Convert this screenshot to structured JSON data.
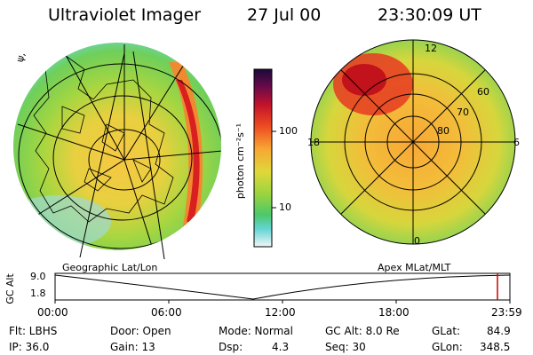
{
  "header": {
    "title": "Ultraviolet Imager",
    "date": "27 Jul 00",
    "time": "23:30:09 UT"
  },
  "colorbar": {
    "label": "photon cm⁻²s⁻¹",
    "ticks": [
      "100",
      "10"
    ]
  },
  "left_panel": {
    "corner_label": "ψ,",
    "caption": "Geographic Lat/Lon"
  },
  "right_panel": {
    "caption": "Apex MLat/MLT",
    "mlt_labels": {
      "top": "12",
      "bottom": "0",
      "left": "18",
      "right": "6"
    },
    "lat_labels": [
      "60",
      "70",
      "80"
    ]
  },
  "altitude_plot": {
    "ylabel": "GC Alt",
    "ymax": "9.0",
    "ymin": "1.8",
    "xticks": [
      "00:00",
      "06:00",
      "12:00",
      "18:00",
      "23:59"
    ]
  },
  "info": {
    "row1": {
      "flt": "Flt: LBHS",
      "door": "Door: Open",
      "mode": "Mode: Normal",
      "gc_alt": "GC Alt: 8.0 Re",
      "glat_label": "GLat:",
      "glat_value": "84.9"
    },
    "row2": {
      "ip": "IP: 36.0",
      "gain": "Gain: 13",
      "dsp_label": "Dsp:",
      "dsp_value": "4.3",
      "seq": "Seq: 30",
      "glon_label": "GLon:",
      "glon_value": "348.5"
    }
  },
  "colors": {
    "background": "#ffffff",
    "cursor": "#cc0000"
  }
}
